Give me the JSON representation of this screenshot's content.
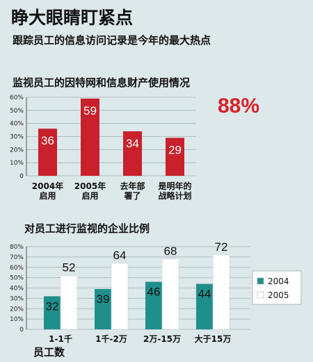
{
  "title": "睁大眼睛盯紧点",
  "subtitle": "跟踪员工的信息访问记录是今年的最大热点",
  "chart_data": [
    {
      "type": "bar",
      "title": "监视员工的因特网和信息财产使用情况",
      "categories": [
        [
          "2004年",
          "启用"
        ],
        [
          "2005年",
          "启用"
        ],
        [
          "去年部",
          "署了"
        ],
        [
          "是明年的",
          "战略计划"
        ]
      ],
      "values": [
        36,
        59,
        34,
        29
      ],
      "ylim": [
        0,
        60
      ],
      "yticks": [
        "0",
        "10%",
        "20%",
        "30%",
        "40%",
        "50%",
        "60%"
      ],
      "highlight": "88%",
      "color": "#c8212b",
      "grid": true
    },
    {
      "type": "bar",
      "title": "对员工进行监视的企业比例",
      "categories": [
        "1-1千",
        "1千-2万",
        "2万-15万",
        "大于15万"
      ],
      "series": [
        {
          "name": "2004",
          "values": [
            32,
            39,
            46,
            44
          ],
          "color": "#1f8f8c"
        },
        {
          "name": "2005",
          "values": [
            52,
            64,
            68,
            72
          ],
          "color": "#ffffff"
        }
      ],
      "ylim": [
        0,
        80
      ],
      "yticks": [
        "0",
        "10%",
        "20%",
        "30%",
        "40%",
        "50%",
        "60%",
        "70%",
        "80%"
      ],
      "xlabel": "员工数",
      "legend": "right",
      "grid": true
    }
  ]
}
